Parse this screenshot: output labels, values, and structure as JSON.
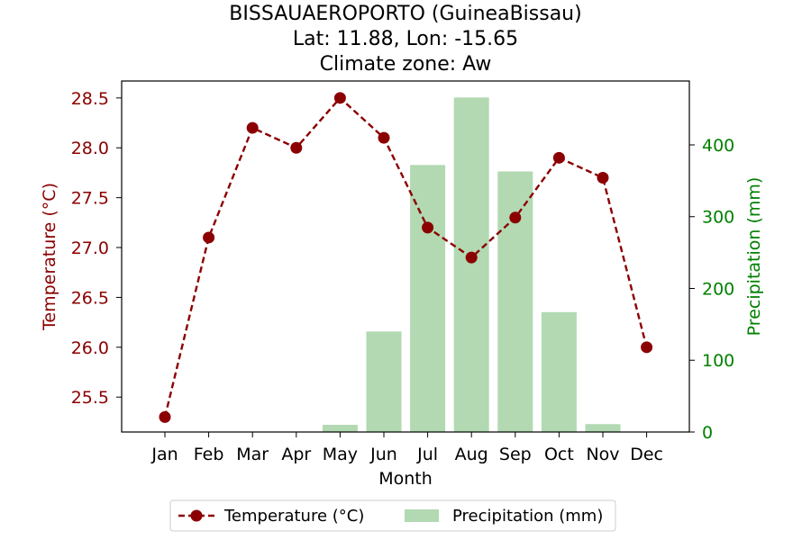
{
  "title_lines": [
    "BISSAUAEROPORTO (GuineaBissau)",
    "Lat: 11.88, Lon: -15.65",
    "Climate zone: Aw"
  ],
  "colors": {
    "temperature": "#8b0000",
    "precipitation": "#b2d9b2",
    "precip_axis": "#008000"
  },
  "chart_data": {
    "type": "bar+line",
    "categories": [
      "Jan",
      "Feb",
      "Mar",
      "Apr",
      "May",
      "Jun",
      "Jul",
      "Aug",
      "Sep",
      "Oct",
      "Nov",
      "Dec"
    ],
    "xlabel": "Month",
    "series": [
      {
        "name": "Temperature (°C)",
        "type": "line",
        "axis": "left",
        "values": [
          25.3,
          27.1,
          28.2,
          28.0,
          28.5,
          28.1,
          27.2,
          26.9,
          27.3,
          27.9,
          27.7,
          26.0
        ]
      },
      {
        "name": "Precipitation (mm)",
        "type": "bar",
        "axis": "right",
        "values": [
          0,
          0,
          0,
          0,
          10,
          140,
          372,
          466,
          363,
          167,
          11,
          0
        ]
      }
    ],
    "y_left": {
      "label": "Temperature (°C)",
      "range": [
        25.15,
        28.67
      ],
      "ticks": [
        25.5,
        26.0,
        26.5,
        27.0,
        27.5,
        28.0,
        28.5
      ],
      "tick_labels": [
        "25.5",
        "26.0",
        "26.5",
        "27.0",
        "27.5",
        "28.0",
        "28.5"
      ]
    },
    "y_right": {
      "label": "Precipitation (mm)",
      "range": [
        0,
        489
      ],
      "ticks": [
        0,
        100,
        200,
        300,
        400
      ],
      "tick_labels": [
        "0",
        "100",
        "200",
        "300",
        "400"
      ]
    },
    "grid": false,
    "legend_position": "bottom-center"
  }
}
